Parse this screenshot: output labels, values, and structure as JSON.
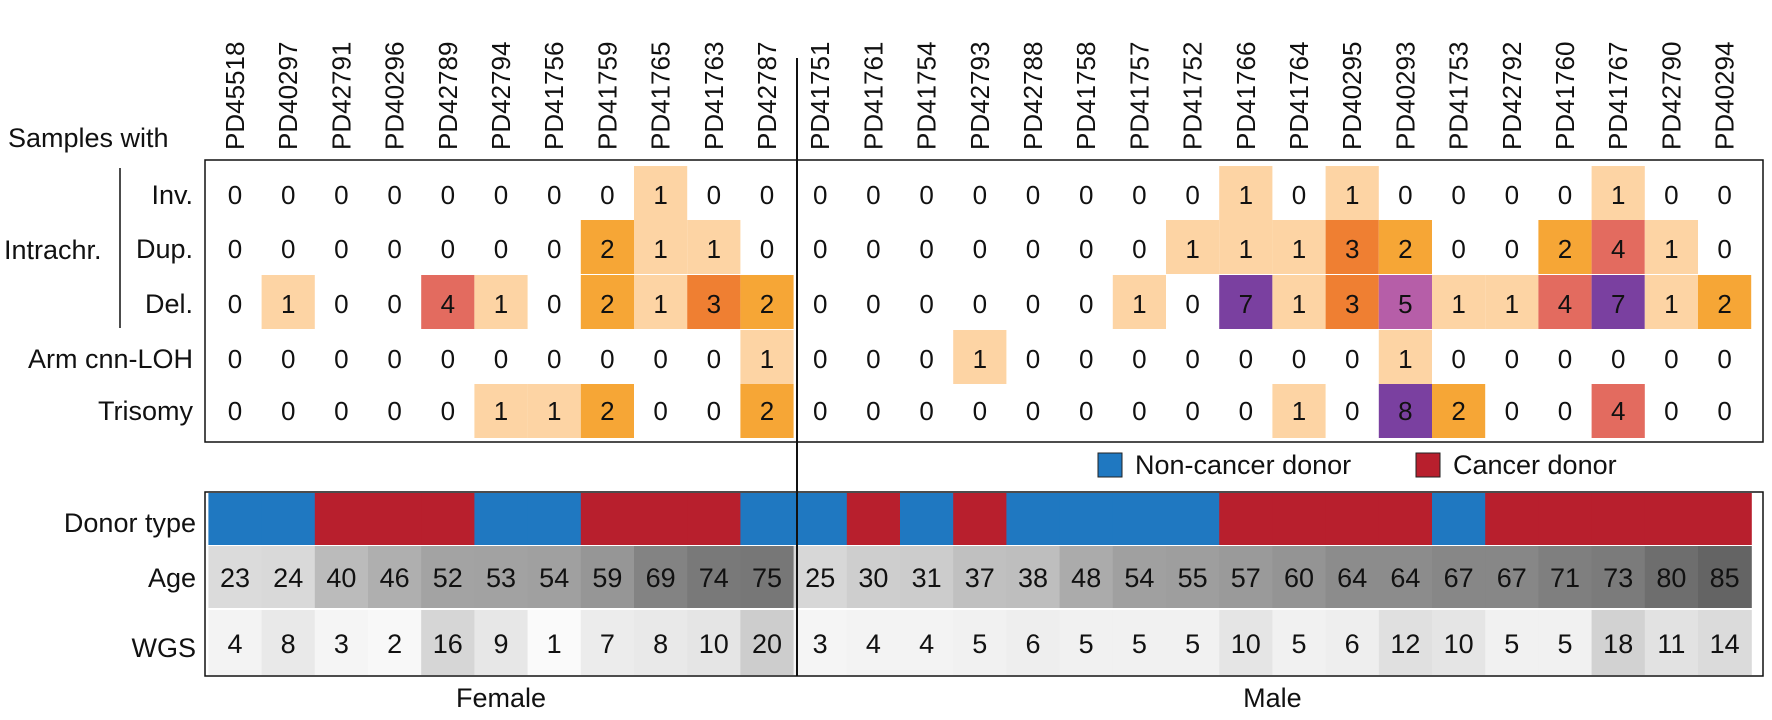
{
  "chart_data": {
    "type": "heatmap",
    "header_label": "Samples with",
    "group_label": "Intrachr.",
    "samples": [
      "PD45518",
      "PD40297",
      "PD42791",
      "PD40296",
      "PD42789",
      "PD42794",
      "PD41756",
      "PD41759",
      "PD41765",
      "PD41763",
      "PD42787",
      "PD41751",
      "PD41761",
      "PD41754",
      "PD42793",
      "PD42788",
      "PD41758",
      "PD41757",
      "PD41752",
      "PD41766",
      "PD41764",
      "PD40295",
      "PD40293",
      "PD41753",
      "PD42792",
      "PD41760",
      "PD41767",
      "PD42790",
      "PD40294"
    ],
    "sex_groups": [
      {
        "label": "Female",
        "count": 11
      },
      {
        "label": "Male",
        "count": 18
      }
    ],
    "event_rows": [
      {
        "label": "Inv.",
        "values": [
          0,
          0,
          0,
          0,
          0,
          0,
          0,
          0,
          1,
          0,
          0,
          0,
          0,
          0,
          0,
          0,
          0,
          0,
          0,
          1,
          0,
          1,
          0,
          0,
          0,
          0,
          1,
          0,
          0
        ]
      },
      {
        "label": "Dup.",
        "values": [
          0,
          0,
          0,
          0,
          0,
          0,
          0,
          2,
          1,
          1,
          0,
          0,
          0,
          0,
          0,
          0,
          0,
          0,
          1,
          1,
          1,
          3,
          2,
          0,
          0,
          2,
          4,
          1,
          0
        ]
      },
      {
        "label": "Del.",
        "values": [
          0,
          1,
          0,
          0,
          4,
          1,
          0,
          2,
          1,
          3,
          2,
          0,
          0,
          0,
          0,
          0,
          0,
          1,
          0,
          7,
          1,
          3,
          5,
          1,
          1,
          4,
          7,
          1,
          2
        ]
      },
      {
        "label": "Arm cnn-LOH",
        "values": [
          0,
          0,
          0,
          0,
          0,
          0,
          0,
          0,
          0,
          0,
          1,
          0,
          0,
          0,
          1,
          0,
          0,
          0,
          0,
          0,
          0,
          0,
          1,
          0,
          0,
          0,
          0,
          0,
          0
        ]
      },
      {
        "label": "Trisomy",
        "values": [
          0,
          0,
          0,
          0,
          0,
          1,
          1,
          2,
          0,
          0,
          2,
          0,
          0,
          0,
          0,
          0,
          0,
          0,
          0,
          0,
          1,
          0,
          8,
          2,
          0,
          0,
          4,
          0,
          0
        ]
      }
    ],
    "count_colors": {
      "1": "#fdd4a4",
      "2": "#f6a636",
      "3": "#ef7f32",
      "4": "#e36b5f",
      "5": "#b65ea8",
      "7": "#7a40a0",
      "8": "#7a40a0"
    },
    "donor_type_label": "Donor type",
    "donor_types": [
      "non",
      "non",
      "cancer",
      "cancer",
      "cancer",
      "non",
      "non",
      "cancer",
      "cancer",
      "cancer",
      "non",
      "non",
      "cancer",
      "non",
      "cancer",
      "non",
      "non",
      "non",
      "non",
      "cancer",
      "cancer",
      "cancer",
      "cancer",
      "non",
      "cancer",
      "cancer",
      "cancer",
      "cancer",
      "cancer"
    ],
    "legend": [
      {
        "key": "non",
        "label": "Non-cancer donor",
        "color": "#1f78c1"
      },
      {
        "key": "cancer",
        "label": "Cancer donor",
        "color": "#b81f2d"
      }
    ],
    "age_label": "Age",
    "ages": [
      23,
      24,
      40,
      46,
      52,
      53,
      54,
      59,
      69,
      74,
      75,
      25,
      30,
      31,
      37,
      38,
      48,
      54,
      55,
      57,
      60,
      64,
      64,
      67,
      67,
      71,
      73,
      80,
      85
    ],
    "wgs_label": "WGS",
    "wgs": [
      4,
      8,
      3,
      2,
      16,
      9,
      1,
      7,
      8,
      10,
      20,
      3,
      4,
      4,
      5,
      6,
      5,
      5,
      5,
      10,
      5,
      6,
      12,
      10,
      5,
      5,
      18,
      11,
      14
    ]
  }
}
